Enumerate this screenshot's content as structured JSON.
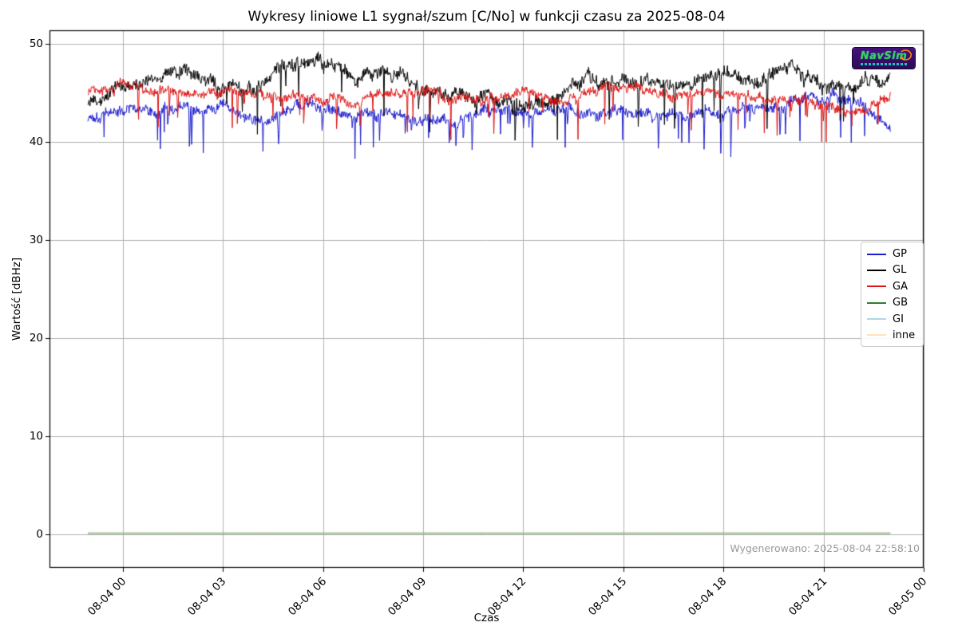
{
  "logo": {
    "text": "NavSim"
  },
  "chart_data": {
    "type": "line",
    "title": "Wykresy liniowe L1 sygnał/szum [C/No] w funkcji czasu za 2025-08-04",
    "xlabel": "Czas",
    "ylabel": "Wartość [dBHz]",
    "generated_label": "Wygenerowano: 2025-08-04 22:58:10",
    "grid": true,
    "legend_position": "right-center",
    "x_ticks": [
      "08-04 00",
      "08-04 03",
      "08-04 06",
      "08-04 09",
      "08-04 12",
      "08-04 15",
      "08-04 18",
      "08-04 21",
      "08-05 00"
    ],
    "x_tick_hours": [
      0,
      3,
      6,
      9,
      12,
      15,
      18,
      21,
      24
    ],
    "y_ticks": [
      "0",
      "10",
      "20",
      "30",
      "40",
      "50"
    ],
    "y_tick_values": [
      0,
      10,
      20,
      30,
      40,
      50
    ],
    "xlim_hours": [
      -2.2,
      24.0
    ],
    "ylim": [
      -3.41,
      51.38
    ],
    "data_time_span_hours": [
      -1.05,
      23.0
    ],
    "points_per_series": 1440,
    "seed": 1337,
    "series": [
      {
        "name": "GP",
        "color": "#1c1ccd",
        "lw": 1.0,
        "alpha": 1.0,
        "noise": 0.45,
        "spike_prob": 0.03,
        "spike_max": 3.6,
        "clamp": [
          38.3,
          45.6
        ],
        "anchors_hourly_dBHz": [
          42.5,
          43.3,
          43.5,
          43.2,
          43.4,
          42.2,
          43.5,
          43.6,
          43.2,
          42.8,
          42.3,
          42.0,
          43.2,
          43.4,
          43.6,
          43.0,
          43.2,
          42.8,
          42.9,
          43.0,
          43.4,
          44.0,
          44.8,
          44.5,
          41.4
        ]
      },
      {
        "name": "GL",
        "color": "#000000",
        "lw": 1.0,
        "alpha": 1.0,
        "noise": 0.55,
        "spike_prob": 0.02,
        "spike_max": 4.2,
        "clamp": [
          39.5,
          49.2
        ],
        "anchors_hourly_dBHz": [
          44.3,
          45.6,
          46.4,
          47.6,
          45.8,
          45.6,
          47.6,
          48.2,
          46.8,
          47.3,
          45.2,
          44.7,
          44.6,
          44.1,
          44.4,
          46.5,
          46.1,
          45.5,
          45.9,
          47.0,
          46.0,
          47.6,
          45.6,
          46.2,
          46.5
        ]
      },
      {
        "name": "GA",
        "color": "#dd1414",
        "lw": 1.0,
        "alpha": 1.0,
        "noise": 0.4,
        "spike_prob": 0.026,
        "spike_max": 3.2,
        "clamp": [
          40.0,
          46.7
        ],
        "anchors_hourly_dBHz": [
          44.9,
          46.1,
          45.1,
          45.0,
          44.9,
          45.0,
          44.7,
          44.3,
          44.4,
          45.1,
          45.2,
          44.5,
          44.3,
          45.1,
          43.9,
          45.4,
          45.6,
          44.9,
          45.1,
          44.9,
          44.6,
          44.4,
          43.6,
          42.9,
          44.6
        ]
      },
      {
        "name": "GB",
        "color": "#2e7d32",
        "lw": 1.6,
        "alpha": 1.0,
        "noise": 0,
        "spike_prob": 0,
        "spike_max": 0,
        "clamp": [
          0,
          1
        ],
        "anchors_hourly_dBHz": [
          0.12,
          0.12
        ]
      },
      {
        "name": "GI",
        "color": "#add8e6",
        "lw": 1.0,
        "alpha": 0.95,
        "noise": 0,
        "spike_prob": 0,
        "spike_max": 0,
        "clamp": [
          0,
          1
        ],
        "anchors_hourly_dBHz": [
          0.12,
          0.12
        ]
      },
      {
        "name": "inne",
        "color": "#ffe2b8",
        "lw": 1.0,
        "alpha": 0.8,
        "noise": 0,
        "spike_prob": 0,
        "spike_max": 0,
        "clamp": [
          0,
          1
        ],
        "anchors_hourly_dBHz": [
          0.12,
          0.12
        ]
      }
    ],
    "style": {
      "grid_color": "#b0b0b0",
      "spine_color": "#000000",
      "generated_text_color": "#9a9a9a"
    }
  }
}
